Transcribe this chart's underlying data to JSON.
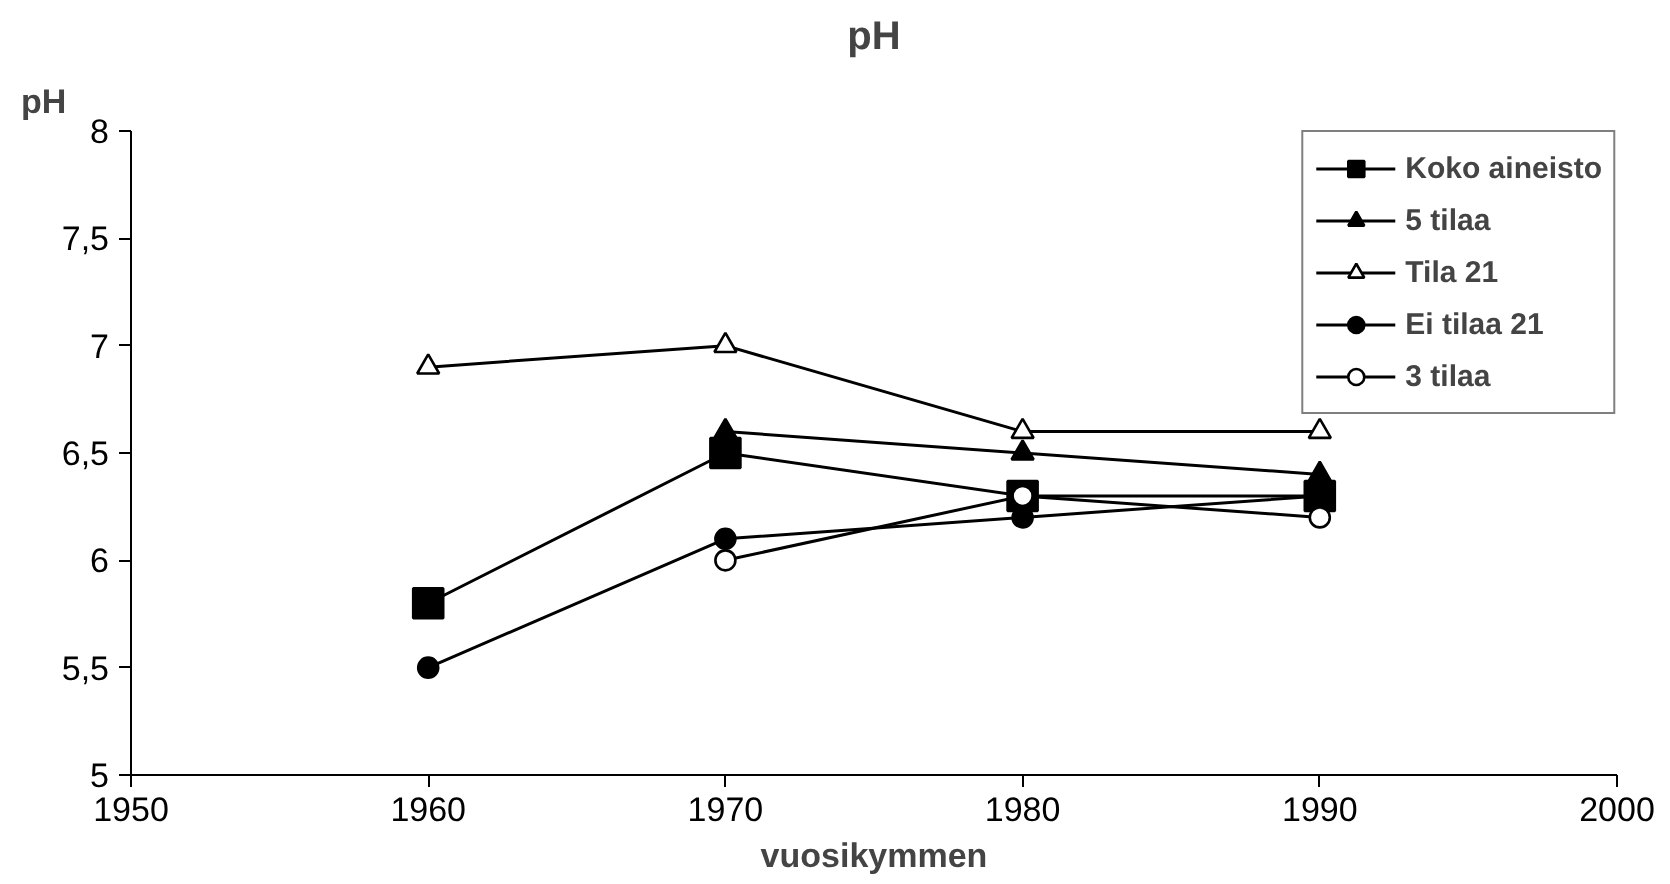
{
  "chart_data": {
    "type": "line",
    "title": "pH",
    "xlabel": "vuosikymmen",
    "ylabel": "pH",
    "x": [
      1960,
      1970,
      1980,
      1990
    ],
    "series": [
      {
        "name": "Koko aineisto",
        "color": "#000000",
        "marker": "square",
        "values": [
          5.8,
          6.5,
          6.3,
          6.3
        ]
      },
      {
        "name": "5 tilaa",
        "color": "#000000",
        "marker": "triangle",
        "values": [
          null,
          6.6,
          6.5,
          6.4
        ]
      },
      {
        "name": "Tila 21",
        "color": "#000000",
        "marker": "triangle_open",
        "values": [
          6.9,
          7.0,
          6.6,
          6.6
        ]
      },
      {
        "name": "Ei tilaa 21",
        "color": "#000000",
        "marker": "circle",
        "values": [
          5.5,
          6.1,
          6.2,
          6.3
        ]
      },
      {
        "name": "3 tilaa",
        "color": "#000000",
        "marker": "circle_open",
        "values": [
          null,
          6.0,
          6.3,
          6.2
        ]
      }
    ],
    "xlim": [
      1950,
      2000
    ],
    "xticks": [
      1950,
      1960,
      1970,
      1980,
      1990,
      2000
    ],
    "ylim": [
      5,
      8
    ],
    "yticks": [
      5,
      {
        "value": 5.5,
        "label": "5,5"
      },
      6,
      {
        "value": 6.5,
        "label": "6,5"
      },
      7,
      {
        "value": 7.5,
        "label": "7,5"
      },
      8
    ],
    "grid": false,
    "legend": "top right",
    "line_style": "solid"
  }
}
